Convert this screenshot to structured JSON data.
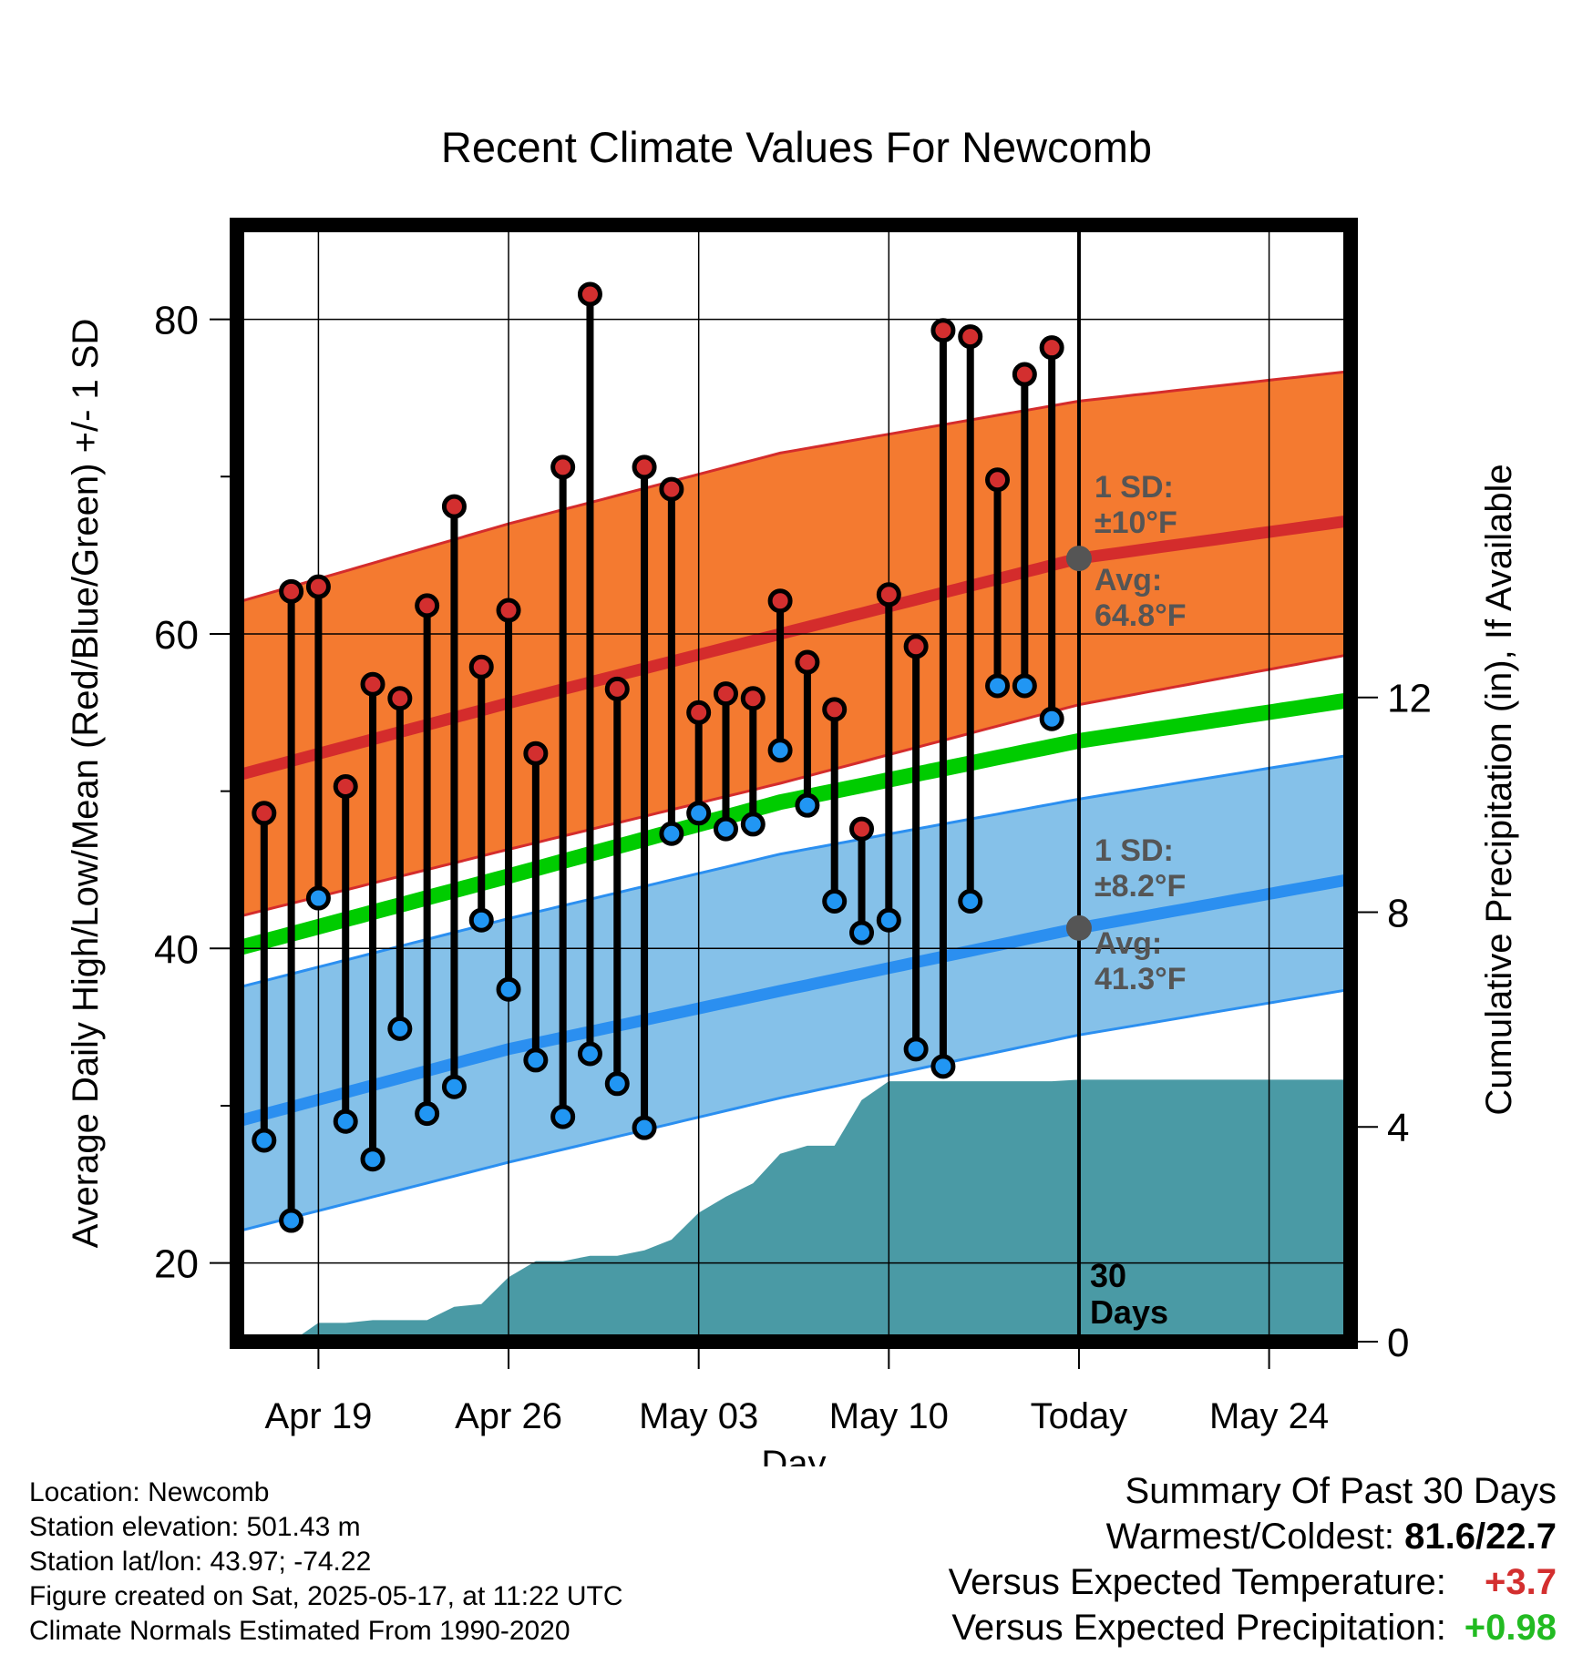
{
  "chart_data": {
    "type": "line",
    "title": "Recent Climate Values For Newcomb",
    "xlabel": "Day",
    "ylabel_left": "Average Daily High/Low/Mean (Red/Blue/Green) +/- 1 SD",
    "ylabel_right": "Cumulative Precipitation (in), If Available",
    "x_tick_labels": [
      "Apr 19",
      "Apr 26",
      "May 03",
      "May 10",
      "Today",
      "May 24"
    ],
    "x_tick_dates": [
      "2025-04-19",
      "2025-04-26",
      "2025-05-03",
      "2025-05-10",
      "2025-05-17",
      "2025-05-24"
    ],
    "xlim": [
      "2025-04-16",
      "2025-05-27"
    ],
    "ylim_left": [
      15,
      86
    ],
    "yticks_left": [
      20,
      40,
      60,
      80
    ],
    "ylim_right": [
      0,
      20.8
    ],
    "yticks_right": [
      0,
      4,
      8,
      12
    ],
    "grid": true,
    "today_date": "2025-05-17",
    "window_label_1": "30",
    "window_label_2": "Days",
    "normals": {
      "dates": [
        "2025-04-16",
        "2025-04-26",
        "2025-05-06",
        "2025-05-17",
        "2025-05-27"
      ],
      "high_avg": [
        51.0,
        55.6,
        60.0,
        64.8,
        67.2
      ],
      "high_upper": [
        62.0,
        67.0,
        71.5,
        74.8,
        76.7
      ],
      "high_lower": [
        42.0,
        46.3,
        50.5,
        55.5,
        58.7
      ],
      "mean_avg": [
        40.0,
        44.6,
        49.3,
        53.2,
        55.8
      ],
      "low_avg": [
        29.0,
        33.6,
        37.3,
        41.3,
        44.4
      ],
      "low_upper": [
        37.5,
        41.9,
        46.0,
        49.5,
        52.3
      ],
      "low_lower": [
        22.0,
        26.4,
        30.5,
        34.5,
        37.4
      ]
    },
    "high_sd_label": "1 SD:",
    "high_sd_value": "±10°F",
    "high_avg_label": "Avg:",
    "high_avg_value": "64.8°F",
    "low_sd_label": "1 SD:",
    "low_sd_value": "±8.2°F",
    "low_avg_label": "Avg:",
    "low_avg_value": "41.3°F",
    "colors": {
      "high_band": "#f47a30",
      "high_line": "#d42c2c",
      "mean_line": "#00cc00",
      "low_band": "#85c1e9",
      "low_line": "#2b8ff0",
      "precip": "#4a9aa5",
      "high_marker": "#d32f2f",
      "low_marker": "#2196f3",
      "avg_marker": "#555555",
      "annotation": "#555555"
    },
    "daily": {
      "dates": [
        "2025-04-17",
        "2025-04-18",
        "2025-04-19",
        "2025-04-20",
        "2025-04-21",
        "2025-04-22",
        "2025-04-23",
        "2025-04-24",
        "2025-04-25",
        "2025-04-26",
        "2025-04-27",
        "2025-04-28",
        "2025-04-29",
        "2025-04-30",
        "2025-05-01",
        "2025-05-02",
        "2025-05-03",
        "2025-05-04",
        "2025-05-05",
        "2025-05-06",
        "2025-05-07",
        "2025-05-08",
        "2025-05-09",
        "2025-05-10",
        "2025-05-11",
        "2025-05-12",
        "2025-05-13",
        "2025-05-14",
        "2025-05-15",
        "2025-05-16"
      ],
      "high": [
        48.6,
        62.7,
        63.0,
        50.3,
        56.8,
        55.9,
        61.8,
        68.1,
        57.9,
        61.5,
        52.4,
        70.6,
        81.6,
        56.5,
        70.6,
        69.2,
        55.0,
        56.2,
        55.9,
        62.1,
        58.2,
        55.2,
        47.6,
        62.5,
        59.2,
        79.3,
        78.9,
        69.8,
        76.5,
        78.2
      ],
      "low": [
        27.8,
        22.7,
        43.2,
        29.0,
        26.6,
        34.9,
        29.5,
        31.2,
        41.8,
        37.4,
        32.9,
        29.3,
        33.3,
        31.4,
        28.6,
        47.3,
        48.6,
        47.6,
        47.9,
        52.6,
        49.1,
        43.0,
        41.0,
        41.8,
        33.6,
        32.5,
        43.0,
        56.7,
        56.7,
        54.6
      ]
    },
    "precip": {
      "dates": [
        "2025-04-16",
        "2025-04-17",
        "2025-04-18",
        "2025-04-19",
        "2025-04-20",
        "2025-04-21",
        "2025-04-22",
        "2025-04-23",
        "2025-04-24",
        "2025-04-25",
        "2025-04-26",
        "2025-04-27",
        "2025-04-28",
        "2025-04-29",
        "2025-04-30",
        "2025-05-01",
        "2025-05-02",
        "2025-05-03",
        "2025-05-04",
        "2025-05-05",
        "2025-05-06",
        "2025-05-07",
        "2025-05-08",
        "2025-05-09",
        "2025-05-10",
        "2025-05-11",
        "2025-05-12",
        "2025-05-13",
        "2025-05-14",
        "2025-05-15",
        "2025-05-16",
        "2025-05-17",
        "2025-05-27"
      ],
      "cumulative": [
        0,
        0,
        0,
        0.35,
        0.35,
        0.4,
        0.4,
        0.4,
        0.65,
        0.7,
        1.2,
        1.5,
        1.5,
        1.6,
        1.6,
        1.7,
        1.9,
        2.4,
        2.7,
        2.95,
        3.5,
        3.65,
        3.65,
        4.5,
        4.85,
        4.85,
        4.85,
        4.85,
        4.85,
        4.85,
        4.85,
        4.88,
        4.88
      ]
    }
  },
  "footer": {
    "location": "Location: Newcomb",
    "elevation": "Station elevation: 501.43 m",
    "latlon": "Station lat/lon: 43.97; -74.22",
    "created": "Figure created on Sat, 2025-05-17, at 11:22 UTC",
    "normals": "Climate Normals Estimated From 1990-2020"
  },
  "summary": {
    "heading": "Summary Of Past 30 Days",
    "warm_label": "Warmest/Coldest:",
    "warm_value": "81.6/22.7",
    "temp_label": "Versus Expected Temperature:",
    "temp_value": "+3.7",
    "precip_label": "Versus Expected Precipitation:",
    "precip_value": "+0.98"
  }
}
